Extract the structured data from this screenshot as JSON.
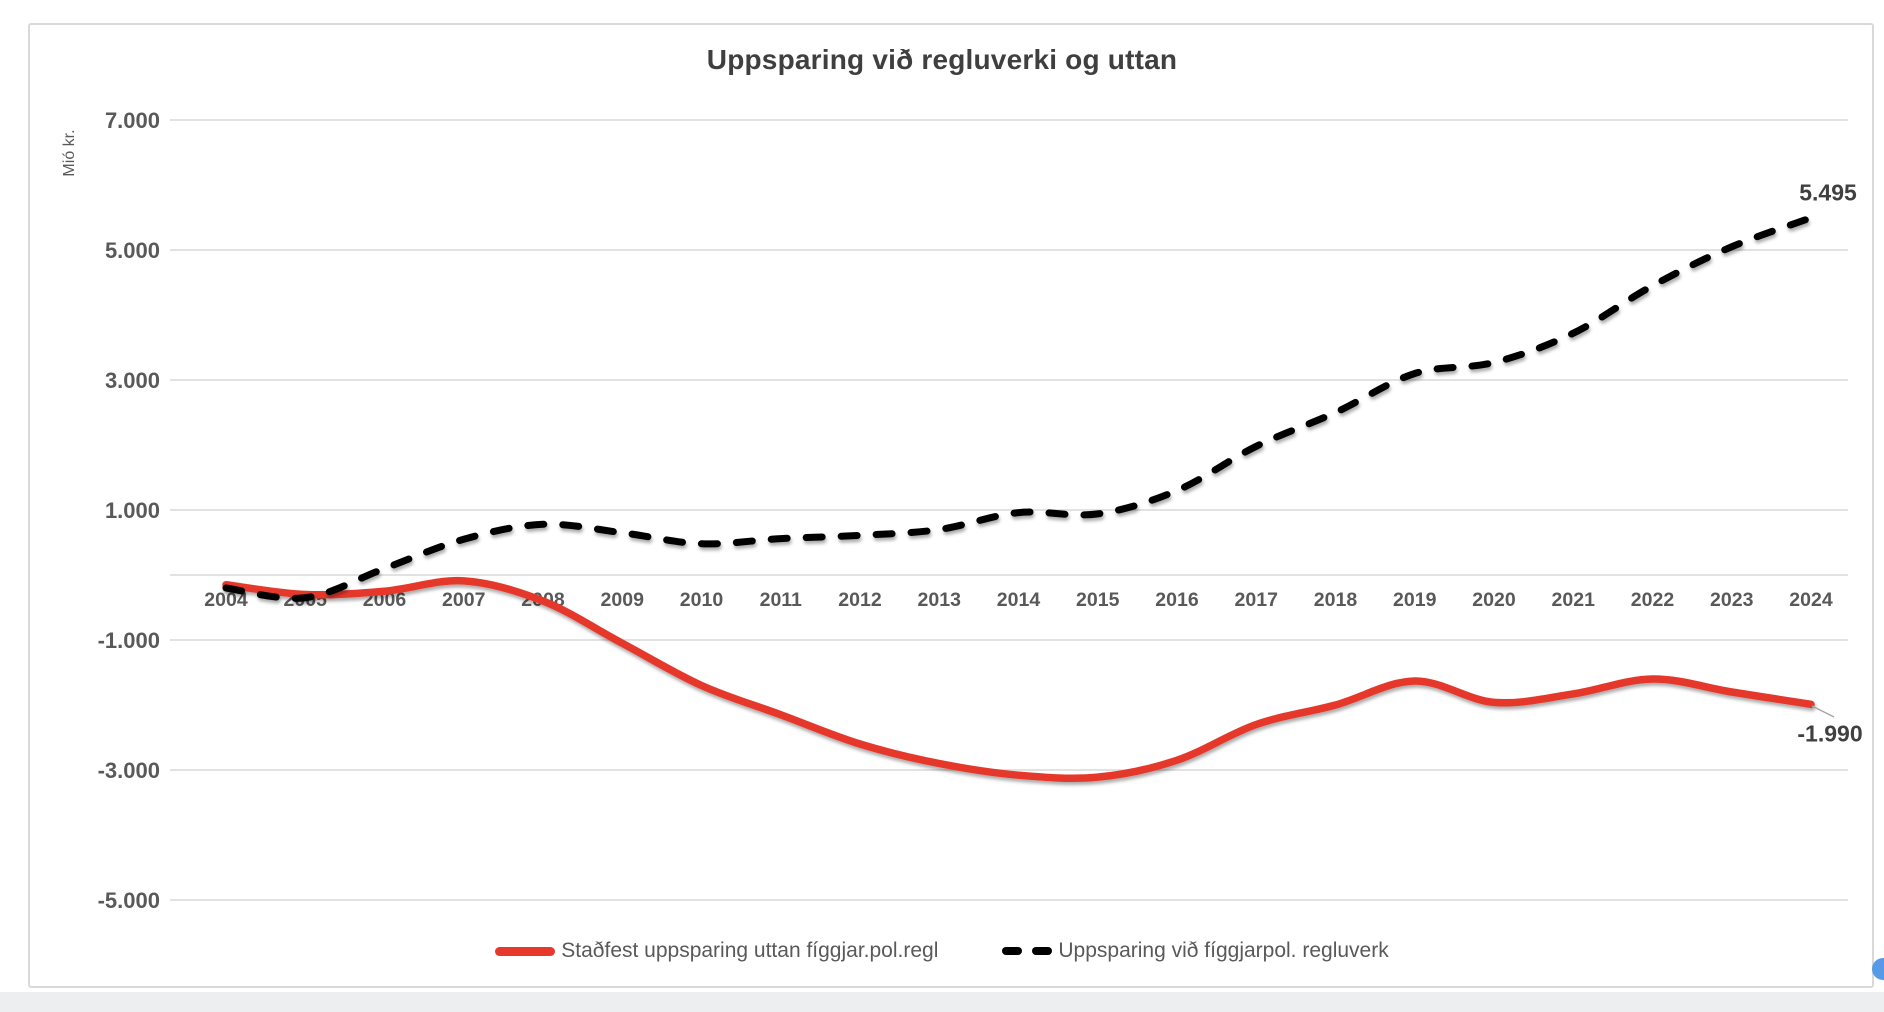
{
  "chart_data": {
    "type": "line",
    "title": "Uppsparing við regluverki og uttan",
    "y_axis_title": "Mió kr.",
    "categories": [
      "2004",
      "2005",
      "2006",
      "2007",
      "2008",
      "2009",
      "2010",
      "2011",
      "2012",
      "2013",
      "2014",
      "2015",
      "2016",
      "2017",
      "2018",
      "2019",
      "2020",
      "2021",
      "2022",
      "2023",
      "2024"
    ],
    "series": [
      {
        "name": "Staðfest uppsparing uttan fíggjar.pol.regl",
        "style": "solid",
        "color": "#e6392c",
        "values": [
          -150,
          -300,
          -250,
          -90,
          -400,
          -1050,
          -1700,
          -2150,
          -2600,
          -2900,
          -3080,
          -3110,
          -2850,
          -2300,
          -2000,
          -1630,
          -1960,
          -1830,
          -1600,
          -1800,
          -1990
        ],
        "end_label": "-1.990"
      },
      {
        "name": "Uppsparing við fíggjarpol. regluverk",
        "style": "dashed",
        "color": "#000000",
        "values": [
          -200,
          -350,
          100,
          550,
          780,
          650,
          480,
          560,
          610,
          700,
          960,
          940,
          1300,
          1980,
          2500,
          3100,
          3270,
          3720,
          4450,
          5050,
          5495
        ],
        "end_label": "5.495"
      }
    ],
    "y_ticks": {
      "labels": [
        "7.000",
        "5.000",
        "3.000",
        "1.000",
        "-1.000",
        "-3.000",
        "-5.000"
      ],
      "values": [
        7000,
        5000,
        3000,
        1000,
        -1000,
        -3000,
        -5000
      ]
    },
    "ylim": [
      -5000,
      7000
    ],
    "grid": true,
    "legend_position": "bottom",
    "colors": {
      "grid": "#d9d9d9",
      "axis_text": "#595959",
      "title_text": "#3f3f3f",
      "leader_line": "#a6a6a6",
      "panel_border": "#d9d9d9",
      "handle_dot": "#579be8"
    }
  }
}
